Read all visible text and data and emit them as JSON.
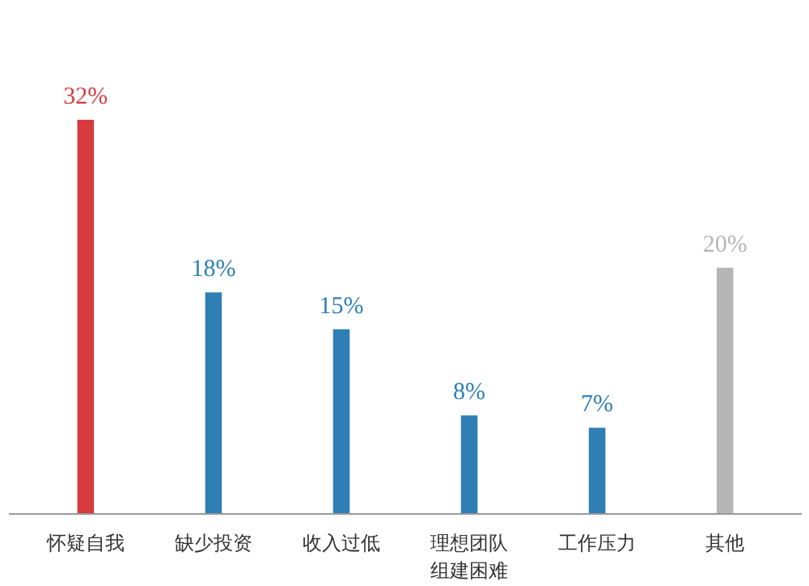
{
  "chart_data": {
    "type": "bar",
    "categories": [
      "怀疑自我",
      "缺少投资",
      "收入过低",
      "理想团队组建困难",
      "工作压力",
      "其他"
    ],
    "values": [
      32,
      18,
      15,
      8,
      7,
      20
    ],
    "colors": [
      "#d63a3e",
      "#2f7fb5",
      "#2f7fb5",
      "#2f7fb5",
      "#2f7fb5",
      "#b5b5b5"
    ],
    "value_labels": [
      "32%",
      "18%",
      "15%",
      "8%",
      "7%",
      "20%"
    ],
    "grid": false
  }
}
